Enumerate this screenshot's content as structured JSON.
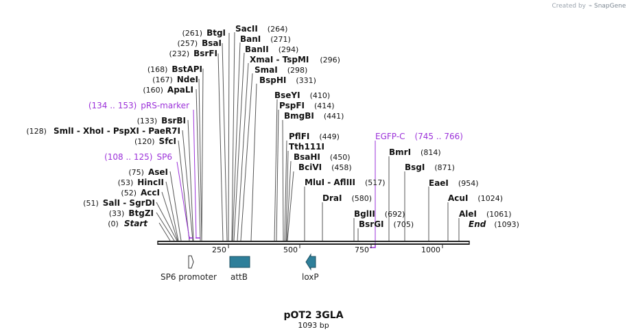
{
  "map": {
    "name": "pOT2 3GLA",
    "length_label": "1093 bp",
    "brand_created_by": "Created by",
    "brand_name": "SnapGene",
    "start_label": "Start",
    "start_pos": "(0)",
    "end_label": "End",
    "end_pos": "(1093)",
    "ticks": [
      "250",
      "500",
      "750",
      "1000"
    ]
  },
  "sites": [
    {
      "pos": "(261)",
      "label": "BtgI"
    },
    {
      "pos": "(257)",
      "label": "BsaI"
    },
    {
      "pos": "(232)",
      "label": "BsrFI"
    },
    {
      "pos": "(168)",
      "label": "BstAPI"
    },
    {
      "pos": "(167)",
      "label": "NdeI"
    },
    {
      "pos": "(160)",
      "label": "ApaLI"
    },
    {
      "pos": "(133)",
      "label": "BsrBI"
    },
    {
      "pos": "(128)",
      "label": "SmlI - XhoI - PspXI - PaeR7I"
    },
    {
      "pos": "(120)",
      "label": "SfcI"
    },
    {
      "pos": "(75)",
      "label": "AseI"
    },
    {
      "pos": "(53)",
      "label": "HincII"
    },
    {
      "pos": "(52)",
      "label": "AccI"
    },
    {
      "pos": "(51)",
      "label": "SalI - SgrDI"
    },
    {
      "pos": "(33)",
      "label": "BtgZI"
    },
    {
      "pos": "(264)",
      "label": "SacII"
    },
    {
      "pos": "(271)",
      "label": "BanI"
    },
    {
      "pos": "(294)",
      "label": "BanII"
    },
    {
      "pos": "(296)",
      "label": "XmaI - TspMI"
    },
    {
      "pos": "(298)",
      "label": "SmaI"
    },
    {
      "pos": "(331)",
      "label": "BspHI"
    },
    {
      "pos": "(410)",
      "label": "BseYI"
    },
    {
      "pos": "(414)",
      "label": "PspFI"
    },
    {
      "pos": "(441)",
      "label": "BmgBI"
    },
    {
      "pos": "(449)",
      "label": "PflFI"
    },
    {
      "pos": "",
      "label": "Tth111I"
    },
    {
      "pos": "(450)",
      "label": "BsaHI"
    },
    {
      "pos": "(458)",
      "label": "BciVI"
    },
    {
      "pos": "(517)",
      "label": "MluI - AflIII"
    },
    {
      "pos": "(580)",
      "label": "DraI"
    },
    {
      "pos": "(692)",
      "label": "BglII"
    },
    {
      "pos": "(705)",
      "label": "BsrGI"
    },
    {
      "pos": "(814)",
      "label": "BmrI"
    },
    {
      "pos": "(871)",
      "label": "BsgI"
    },
    {
      "pos": "(954)",
      "label": "EaeI"
    },
    {
      "pos": "(1024)",
      "label": "AcuI"
    },
    {
      "pos": "(1061)",
      "label": "AleI"
    }
  ],
  "primers": [
    {
      "label": "pRS-marker",
      "range": "(134 .. 153)"
    },
    {
      "label": "SP6",
      "range": "(108 .. 125)"
    },
    {
      "label": "EGFP-C",
      "range": "(745 .. 766)"
    }
  ],
  "features": [
    {
      "label": "SP6 promoter"
    },
    {
      "label": "attB"
    },
    {
      "label": "loxP"
    }
  ],
  "colors": {
    "primer": "#9b30d9",
    "feature": "#2e7f9a",
    "backbone": "#222222"
  }
}
